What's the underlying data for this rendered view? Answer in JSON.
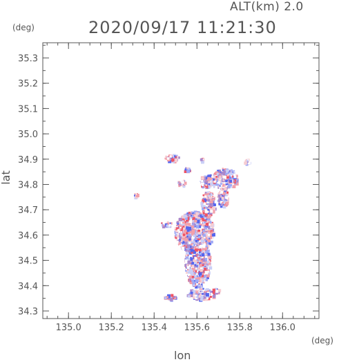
{
  "header": {
    "altitude_label": "ALT(km)  2.0",
    "timestamp": "2020/09/17 11:21:30"
  },
  "axes": {
    "lat_unit": "(deg)",
    "lon_unit": "(deg)",
    "x_title": "lon",
    "y_title": "lat",
    "x_ticks": [
      "135.0",
      "135.2",
      "135.4",
      "135.6",
      "135.8",
      "136.0"
    ],
    "y_ticks": [
      "34.3",
      "34.4",
      "34.5",
      "34.6",
      "34.7",
      "34.8",
      "34.9",
      "35.0",
      "35.1",
      "35.2",
      "35.3"
    ],
    "x_range": [
      134.88,
      136.17
    ],
    "y_range": [
      34.27,
      35.36
    ]
  },
  "colors": {
    "positive": "#ee6677",
    "negative": "#5566ee",
    "outline": "#555555"
  }
}
